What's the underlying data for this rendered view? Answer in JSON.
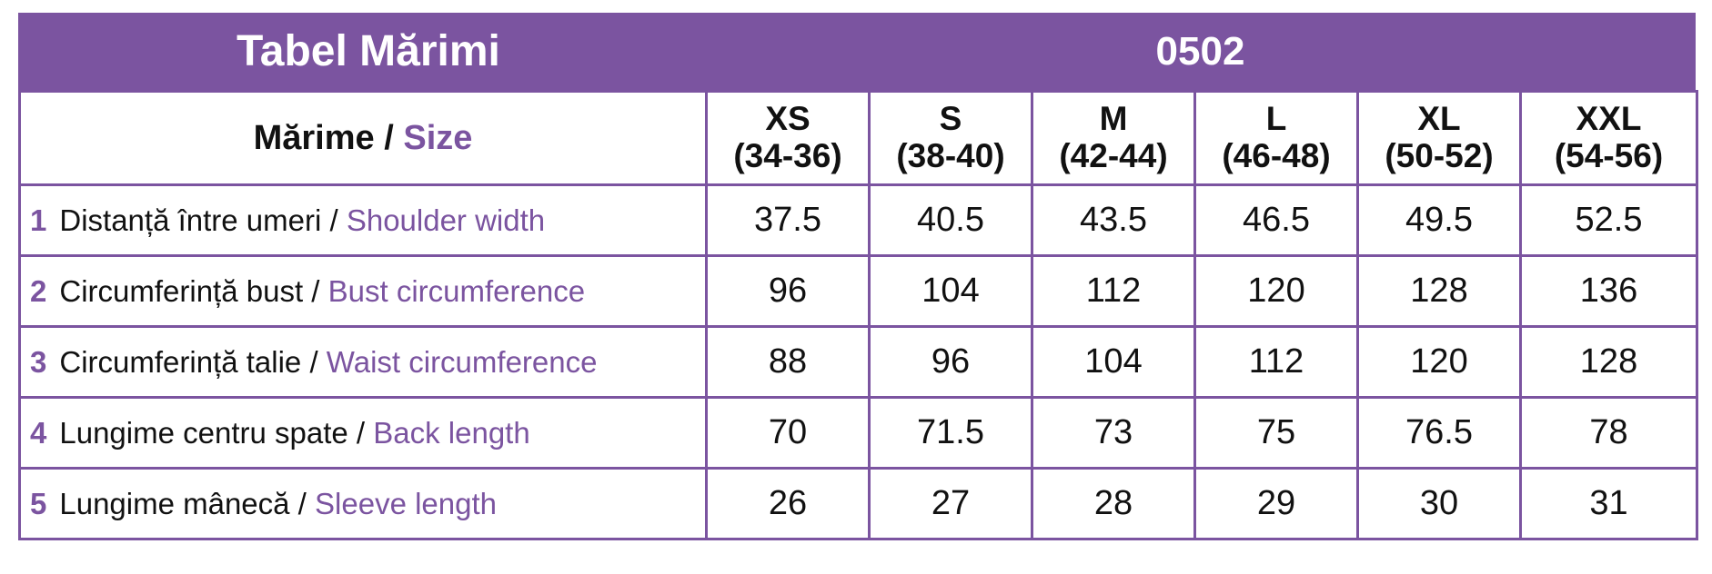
{
  "header": {
    "title": "Tabel Mărimi",
    "code": "0502"
  },
  "size_label": {
    "ro": "Mărime",
    "sep": " / ",
    "en": "Size"
  },
  "sizes": [
    {
      "name": "XS",
      "range": "(34-36)"
    },
    {
      "name": "S",
      "range": "(38-40)"
    },
    {
      "name": "M",
      "range": "(42-44)"
    },
    {
      "name": "L",
      "range": "(46-48)"
    },
    {
      "name": "XL",
      "range": "(50-52)"
    },
    {
      "name": "XXL",
      "range": "(54-56)"
    }
  ],
  "rows": [
    {
      "num": "1",
      "ro": "Distanță între umeri",
      "sep": " / ",
      "en": "Shoulder width",
      "values": [
        "37.5",
        "40.5",
        "43.5",
        "46.5",
        "49.5",
        "52.5"
      ]
    },
    {
      "num": "2",
      "ro": "Circumferință bust",
      "sep": " / ",
      "en": "Bust circumference",
      "values": [
        "96",
        "104",
        "112",
        "120",
        "128",
        "136"
      ]
    },
    {
      "num": "3",
      "ro": "Circumferință talie",
      "sep": " / ",
      "en": "Waist circumference",
      "values": [
        "88",
        "96",
        "104",
        "112",
        "120",
        "128"
      ]
    },
    {
      "num": "4",
      "ro": "Lungime centru spate",
      "sep": " / ",
      "en": "Back length",
      "values": [
        "70",
        "71.5",
        "73",
        "75",
        "76.5",
        "78"
      ]
    },
    {
      "num": "5",
      "ro": "Lungime mânecă",
      "sep": " / ",
      "en": "Sleeve length",
      "values": [
        "26",
        "27",
        "28",
        "29",
        "30",
        "31"
      ]
    }
  ],
  "colors": {
    "accent": "#7b54a0",
    "header_text": "#ffffff"
  }
}
